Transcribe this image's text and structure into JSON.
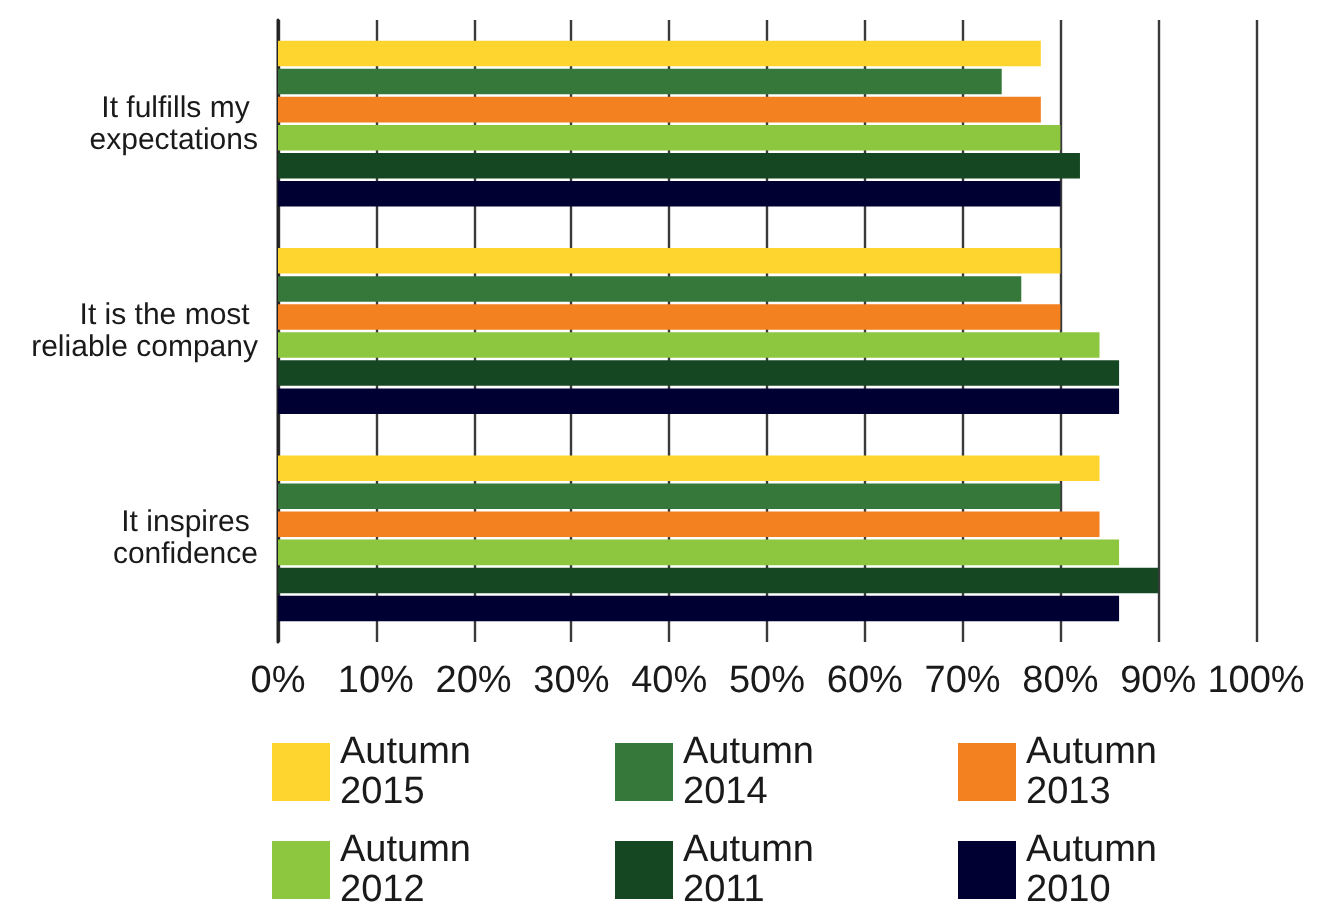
{
  "chart_data": {
    "type": "bar",
    "orientation": "horizontal",
    "categories": [
      "It fulfills my expectations",
      "It is the most reliable company",
      "It inspires confidence"
    ],
    "series": [
      {
        "name": "Autumn 2015",
        "color": "#fed42e",
        "values": [
          78,
          80,
          84
        ]
      },
      {
        "name": "Autumn 2014",
        "color": "#36773a",
        "values": [
          74,
          76,
          80
        ]
      },
      {
        "name": "Autumn 2013",
        "color": "#f38120",
        "values": [
          78,
          80,
          84
        ]
      },
      {
        "name": "Autumn 2012",
        "color": "#8dc63f",
        "values": [
          80,
          84,
          86
        ]
      },
      {
        "name": "Autumn 2011",
        "color": "#164723",
        "values": [
          82,
          86,
          90
        ]
      },
      {
        "name": "Autumn 2010",
        "color": "#000033",
        "values": [
          80,
          86,
          86
        ]
      }
    ],
    "xlim": [
      0,
      100
    ],
    "xticks": [
      {
        "value": 0,
        "label": "0%"
      },
      {
        "value": 10,
        "label": "10%"
      },
      {
        "value": 20,
        "label": "20%"
      },
      {
        "value": 30,
        "label": "30%"
      },
      {
        "value": 40,
        "label": "40%"
      },
      {
        "value": 50,
        "label": "50%"
      },
      {
        "value": 60,
        "label": "60%"
      },
      {
        "value": 70,
        "label": "70%"
      },
      {
        "value": 80,
        "label": "80%"
      },
      {
        "value": 90,
        "label": "90%"
      },
      {
        "value": 100,
        "label": "100%"
      }
    ],
    "grid": "x",
    "legend": "bottom"
  }
}
